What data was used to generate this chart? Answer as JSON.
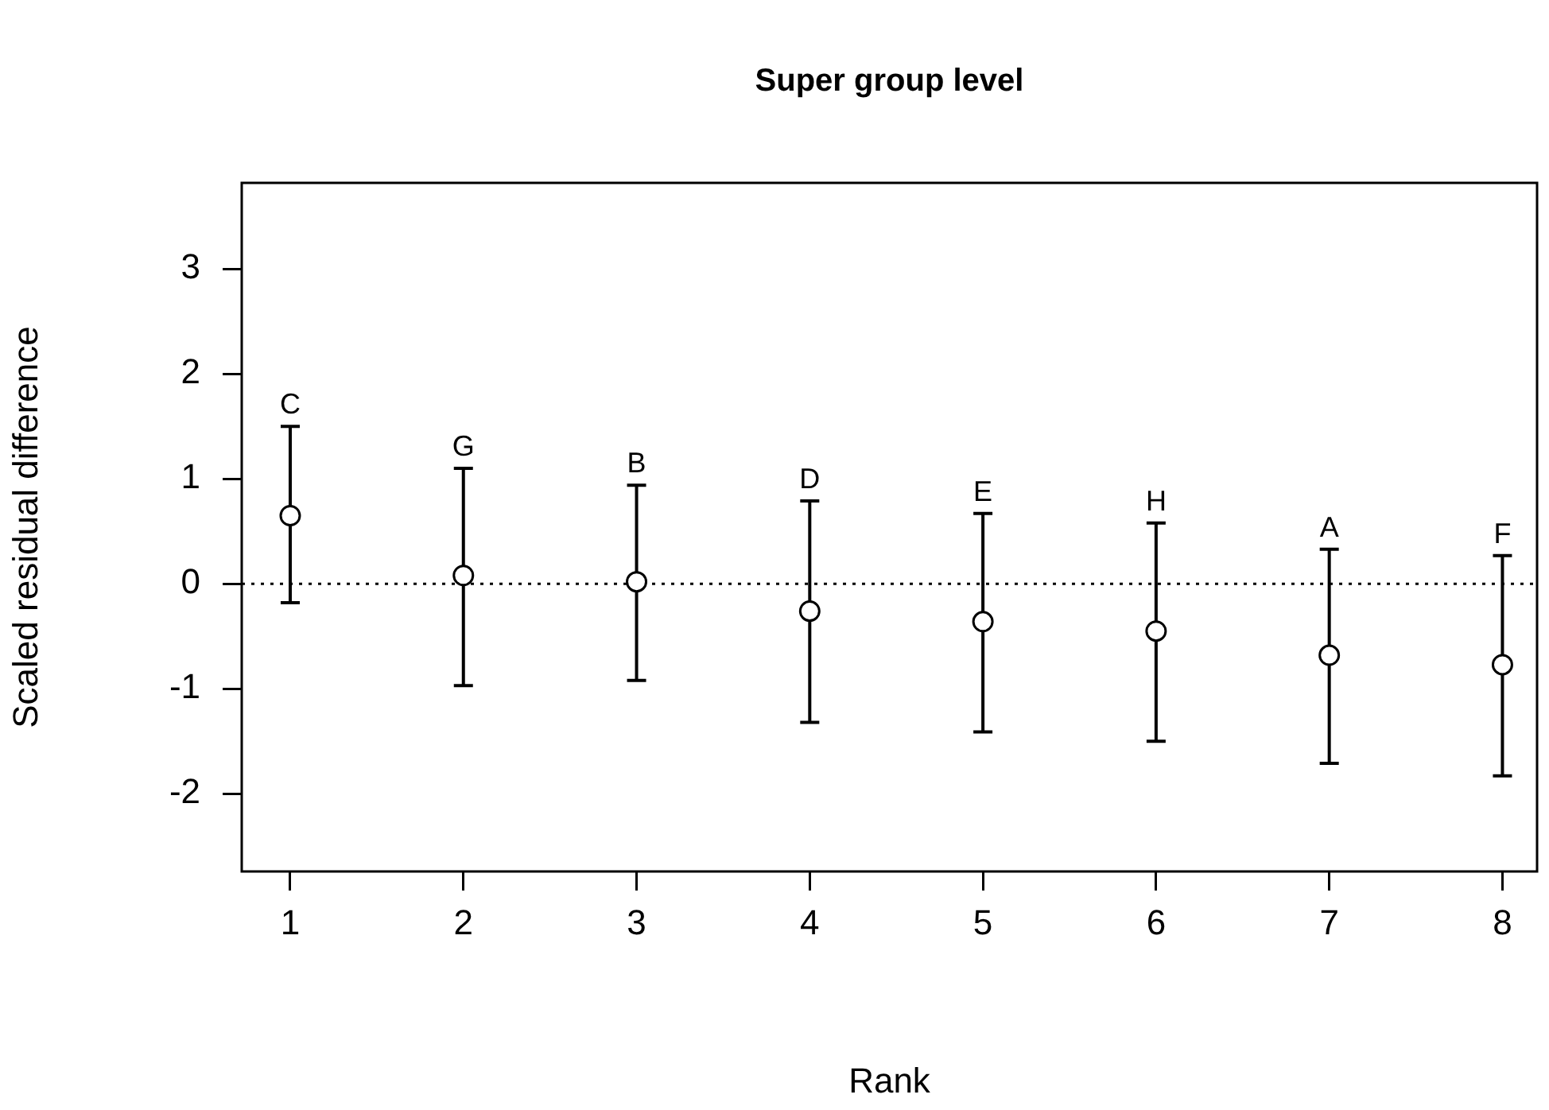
{
  "chart_data": {
    "type": "scatter",
    "title": "Super group level",
    "xlabel": "Rank",
    "ylabel": "Scaled residual difference",
    "x": [
      1,
      2,
      3,
      4,
      5,
      6,
      7,
      8
    ],
    "series": [
      {
        "color": "#000000",
        "values": [
          0.65,
          0.08,
          0.02,
          -0.26,
          -0.36,
          -0.45,
          -0.68,
          -0.77
        ],
        "errors": [
          [
            -0.18,
            1.5
          ],
          [
            -0.97,
            1.1
          ],
          [
            -0.92,
            0.94
          ],
          [
            -1.32,
            0.79
          ],
          [
            -1.41,
            0.67
          ],
          [
            -1.5,
            0.58
          ],
          [
            -1.71,
            0.33
          ],
          [
            -1.83,
            0.27
          ]
        ]
      }
    ],
    "annotations": [
      {
        "text": "C",
        "x": 1,
        "y": 1.5
      },
      {
        "text": "G",
        "x": 2,
        "y": 1.1
      },
      {
        "text": "B",
        "x": 3,
        "y": 0.94
      },
      {
        "text": "D",
        "x": 4,
        "y": 0.79
      },
      {
        "text": "E",
        "x": 5,
        "y": 0.67
      },
      {
        "text": "H",
        "x": 6,
        "y": 0.58
      },
      {
        "text": "A",
        "x": 7,
        "y": 0.33
      },
      {
        "text": "F",
        "x": 8,
        "y": 0.27
      }
    ],
    "ref_lines": [
      {
        "axis": "y",
        "value": 0,
        "line_style": "dotted",
        "color": "#000000"
      }
    ],
    "xlim": [
      0.72,
      8.2
    ],
    "ylim": [
      -2.74,
      3.82
    ],
    "xticks": [
      1,
      2,
      3,
      4,
      5,
      6,
      7,
      8
    ],
    "yticks": [
      -2,
      -1,
      0,
      1,
      2,
      3
    ],
    "marker": "circle",
    "grid": false,
    "legend": false
  }
}
